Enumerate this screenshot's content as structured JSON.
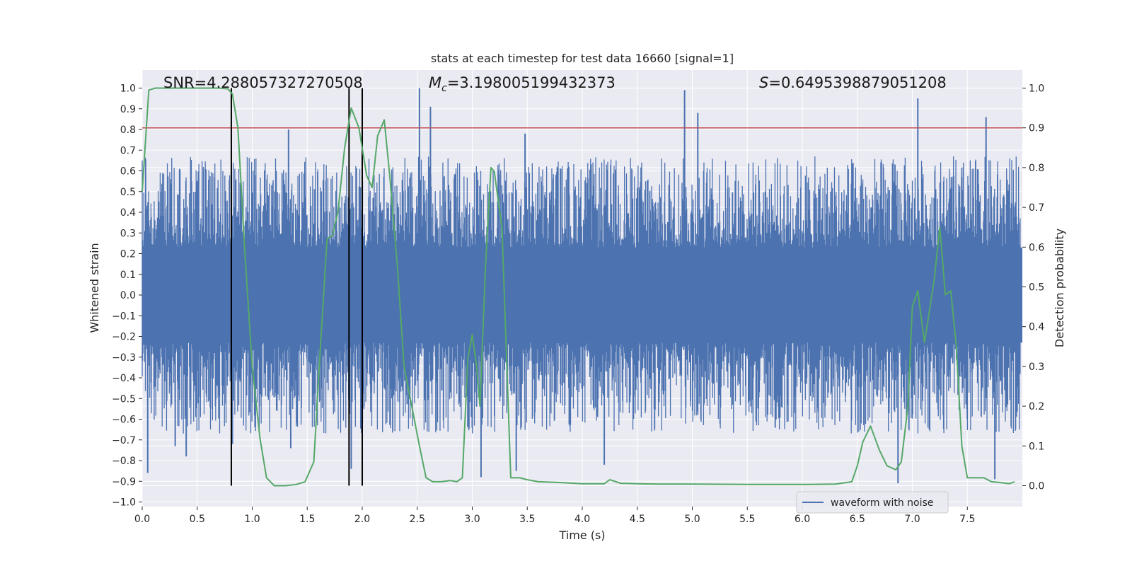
{
  "chart_data": {
    "type": "line",
    "title": "stats at each timestep for test data 16660 [signal=1]",
    "xlabel": "Time (s)",
    "ylabel": "Whitened strain",
    "y2label": "Detection probability",
    "xlim": [
      0.0,
      8.0
    ],
    "ylim": [
      -1.0,
      1.0
    ],
    "y2lim": [
      -0.045,
      1.045
    ],
    "xticks": [
      "0.0",
      "0.5",
      "1.0",
      "1.5",
      "2.0",
      "2.5",
      "3.0",
      "3.5",
      "4.0",
      "4.5",
      "5.0",
      "5.5",
      "6.0",
      "6.5",
      "7.0",
      "7.5"
    ],
    "yticks": [
      "1.0",
      "0.9",
      "0.8",
      "0.7",
      "0.6",
      "0.5",
      "0.4",
      "0.3",
      "0.2",
      "0.1",
      "0.0",
      "−0.1",
      "−0.2",
      "−0.3",
      "−0.4",
      "−0.5",
      "−0.6",
      "−0.7",
      "−0.8",
      "−0.9",
      "−1.0"
    ],
    "y2ticks": [
      "1.0",
      "0.9",
      "0.8",
      "0.7",
      "0.6",
      "0.5",
      "0.4",
      "0.3",
      "0.2",
      "0.1",
      "0.0"
    ],
    "grid": true,
    "annotations": {
      "snr": "SNR=4.288057327270508",
      "mc_symbol": "M",
      "mc_sub": "c",
      "mc_value": "=3.198005199432373",
      "s_symbol": "S",
      "s_value": "=0.6495398879051208"
    },
    "legend": {
      "label": "waveform with noise",
      "placement": "lower-right"
    },
    "threshold_probability": 0.9,
    "vertical_markers_s": [
      0.81,
      1.88,
      2.0
    ],
    "spikes": [
      {
        "t": 0.05,
        "v": -0.86
      },
      {
        "t": 0.3,
        "v": -0.73
      },
      {
        "t": 0.4,
        "v": -0.78
      },
      {
        "t": 0.82,
        "v": -0.72
      },
      {
        "t": 1.33,
        "v": 0.8
      },
      {
        "t": 1.35,
        "v": -0.74
      },
      {
        "t": 1.9,
        "v": -0.84
      },
      {
        "t": 2.52,
        "v": 1.0
      },
      {
        "t": 2.62,
        "v": 0.91
      },
      {
        "t": 3.08,
        "v": -0.88
      },
      {
        "t": 3.4,
        "v": -0.85
      },
      {
        "t": 3.48,
        "v": 0.78
      },
      {
        "t": 4.2,
        "v": -0.82
      },
      {
        "t": 4.93,
        "v": 0.99
      },
      {
        "t": 5.05,
        "v": 0.88
      },
      {
        "t": 6.87,
        "v": -0.91
      },
      {
        "t": 7.05,
        "v": 0.95
      },
      {
        "t": 7.67,
        "v": 0.86
      },
      {
        "t": 7.75,
        "v": -0.89
      }
    ],
    "series": [
      {
        "name": "waveform with noise",
        "color": "#4c72b0",
        "kind": "noise",
        "core_amplitude": 0.23,
        "typical_peak": 0.55
      },
      {
        "kind": "probability",
        "color": "#55a868",
        "x": [
          0.0,
          0.06,
          0.12,
          0.2,
          0.3,
          0.5,
          0.7,
          0.78,
          0.82,
          0.87,
          0.93,
          1.0,
          1.07,
          1.13,
          1.2,
          1.3,
          1.4,
          1.48,
          1.56,
          1.62,
          1.68,
          1.73,
          1.78,
          1.84,
          1.9,
          1.97,
          2.04,
          2.09,
          2.14,
          2.2,
          2.25,
          2.32,
          2.38,
          2.45,
          2.52,
          2.58,
          2.64,
          2.72,
          2.8,
          2.86,
          2.91,
          2.96,
          3.0,
          3.04,
          3.07,
          3.12,
          3.17,
          3.2,
          3.27,
          3.35,
          3.43,
          3.5,
          3.6,
          3.8,
          4.0,
          4.2,
          4.25,
          4.35,
          4.5,
          4.7,
          5.0,
          5.5,
          6.0,
          6.3,
          6.45,
          6.5,
          6.55,
          6.62,
          6.7,
          6.77,
          6.85,
          6.9,
          6.96,
          7.0,
          7.05,
          7.11,
          7.15,
          7.2,
          7.25,
          7.3,
          7.35,
          7.4,
          7.45,
          7.5,
          7.58,
          7.65,
          7.72,
          7.8,
          7.88,
          7.93
        ],
        "y": [
          0.74,
          0.995,
          1.0,
          1.0,
          1.0,
          1.0,
          1.0,
          0.998,
          0.985,
          0.9,
          0.6,
          0.3,
          0.12,
          0.02,
          0.0,
          0.0,
          0.003,
          0.01,
          0.06,
          0.35,
          0.62,
          0.63,
          0.69,
          0.85,
          0.95,
          0.9,
          0.78,
          0.75,
          0.88,
          0.92,
          0.78,
          0.55,
          0.3,
          0.2,
          0.1,
          0.02,
          0.01,
          0.01,
          0.013,
          0.01,
          0.02,
          0.32,
          0.38,
          0.3,
          0.2,
          0.55,
          0.8,
          0.79,
          0.65,
          0.02,
          0.02,
          0.015,
          0.01,
          0.008,
          0.005,
          0.005,
          0.015,
          0.006,
          0.005,
          0.004,
          0.004,
          0.003,
          0.003,
          0.004,
          0.01,
          0.05,
          0.11,
          0.15,
          0.09,
          0.05,
          0.04,
          0.06,
          0.2,
          0.45,
          0.49,
          0.36,
          0.43,
          0.52,
          0.65,
          0.48,
          0.49,
          0.35,
          0.1,
          0.02,
          0.02,
          0.02,
          0.01,
          0.008,
          0.005,
          0.01
        ]
      }
    ]
  }
}
